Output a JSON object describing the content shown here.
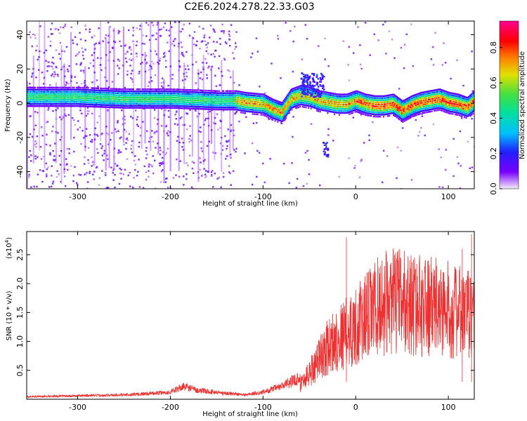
{
  "title": "C2E6.2024.278.22.33.G03",
  "chart_data": [
    {
      "type": "heatmap",
      "xlabel": "Height of straight line (km)",
      "ylabel": "Frequency (Hz)",
      "xlim": [
        -355,
        128
      ],
      "ylim": [
        -50,
        48
      ],
      "xticks": [
        -300,
        -200,
        -100,
        0,
        100
      ],
      "yticks": [
        -40,
        -20,
        0,
        20,
        40
      ],
      "colorbar": {
        "label": "Normalized spectral amplitude",
        "range": [
          0.0,
          0.95
        ],
        "ticks": [
          0.0,
          0.2,
          0.4,
          0.6,
          0.8
        ]
      },
      "ridge": {
        "description_values_x_km": [
          -355,
          -300,
          -250,
          -200,
          -150,
          -130,
          -120,
          -100,
          -90,
          -80,
          -70,
          -60,
          -50,
          -40,
          -30,
          -20,
          -10,
          0,
          10,
          20,
          30,
          40,
          50,
          60,
          70,
          80,
          90,
          100,
          110,
          120,
          128
        ],
        "frequency_hz": [
          4,
          4,
          3,
          3,
          2,
          2,
          1,
          0,
          -3,
          -5,
          3,
          5,
          4,
          2,
          1,
          0,
          0,
          2,
          0,
          -1,
          -1,
          0,
          -4,
          -1,
          1,
          2,
          3,
          1,
          0,
          -2,
          2
        ]
      }
    },
    {
      "type": "line",
      "xlabel": "Height of straight line (km)",
      "ylabel": "SNR (10 * v/v)",
      "y_multiplier": "(x10",
      "y_multiplier_exp": "4",
      "xlim": [
        -355,
        128
      ],
      "ylim": [
        0,
        2.9
      ],
      "xticks": [
        -300,
        -200,
        -100,
        0,
        100
      ],
      "yticks": [
        0.5,
        1.0,
        1.5,
        2.0,
        2.5
      ],
      "ytick_labels": [
        "0.5",
        "1.0",
        "1.5",
        "2.0",
        "2.5"
      ],
      "series": [
        {
          "color": "#f03030",
          "envelope_x": [
            -355,
            -250,
            -200,
            -185,
            -170,
            -150,
            -120,
            -100,
            -80,
            -60,
            -50,
            -40,
            -30,
            -20,
            -10,
            0,
            10,
            20,
            30,
            40,
            50,
            60,
            80,
            100,
            120,
            128
          ],
          "envelope_y": [
            0.03,
            0.05,
            0.08,
            0.15,
            0.1,
            0.08,
            0.05,
            0.08,
            0.15,
            0.25,
            0.45,
            0.7,
            0.9,
            1.05,
            1.15,
            1.25,
            1.4,
            1.55,
            1.65,
            1.7,
            1.7,
            1.65,
            1.6,
            1.55,
            1.45,
            1.5
          ],
          "peaks_x": [
            -10,
            115,
            125
          ],
          "peaks_y": [
            2.8,
            2.6,
            2.85
          ]
        }
      ]
    }
  ]
}
